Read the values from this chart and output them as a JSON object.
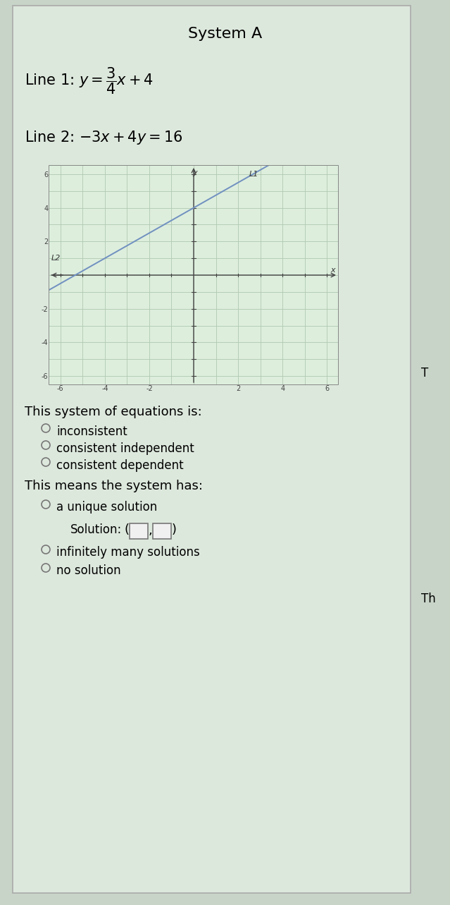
{
  "title": "System A",
  "line1_tex": "Line 1: $y=\\dfrac{3}{4}x+4$",
  "line2_tex": "Line 2: $-3x+4y=16$",
  "graph_xlim": [
    -6.5,
    6.5
  ],
  "graph_ylim": [
    -6.5,
    6.5
  ],
  "line_color": "#7090c0",
  "L1_label": "L1",
  "L2_label": "L2",
  "question1": "This system of equations is:",
  "options1": [
    "inconsistent",
    "consistent independent",
    "consistent dependent"
  ],
  "question2": "This means the system has:",
  "option_unique": "a unique solution",
  "option_inf": "infinitely many solutions",
  "option_no": "no solution",
  "solution_text": "Solution:",
  "bg_color": "#c8d4c8",
  "panel_bg": "#dde8dd",
  "graph_bg": "#ddeedd",
  "graph_grid_color": "#b0c8b0",
  "axis_color": "#555555",
  "title_fontsize": 16,
  "eq_fontsize": 15,
  "question_fontsize": 13,
  "option_fontsize": 12,
  "right_T": "T",
  "right_Th": "Th"
}
